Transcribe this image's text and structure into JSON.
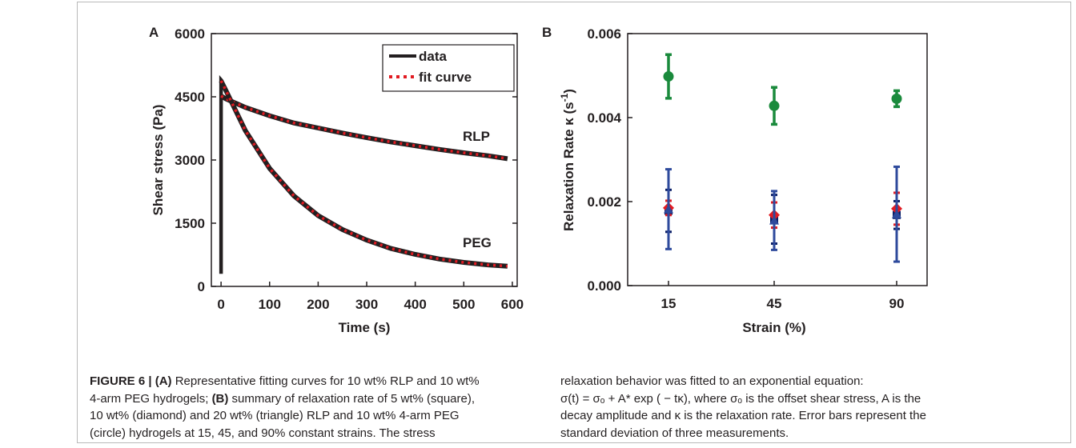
{
  "panel_a": {
    "letter": "A",
    "xlabel": "Time (s)",
    "ylabel": "Shear stress (Pa)",
    "xticks": [
      "0",
      "100",
      "200",
      "300",
      "400",
      "500",
      "600"
    ],
    "yticks": [
      "0",
      "1500",
      "3000",
      "4500",
      "6000"
    ],
    "legend": [
      "data",
      "fit curve"
    ],
    "annotations": [
      "RLP",
      "PEG"
    ]
  },
  "panel_b": {
    "letter": "B",
    "xlabel": "Strain (%)",
    "ylabel_main": "Relaxation Rate κ (s",
    "ylabel_sup": "-1",
    "ylabel_end": ")",
    "xticks": [
      "15",
      "45",
      "90"
    ],
    "yticks": [
      "0.000",
      "0.002",
      "0.004",
      "0.006"
    ]
  },
  "chart_data": [
    {
      "type": "line",
      "title": "",
      "xlabel": "Time (s)",
      "ylabel": "Shear stress (Pa)",
      "xlim": [
        -20,
        610
      ],
      "ylim": [
        0,
        6000
      ],
      "grid": false,
      "legend_position": "top-right",
      "series": [
        {
          "name": "data",
          "style": "solid",
          "color": "#231f20",
          "x": [
            0,
            10,
            50,
            100,
            150,
            200,
            250,
            300,
            350,
            400,
            450,
            500,
            550,
            590
          ],
          "y": [
            4520,
            4450,
            4250,
            4050,
            3880,
            3760,
            3640,
            3530,
            3430,
            3340,
            3250,
            3170,
            3100,
            3030
          ]
        },
        {
          "name": "fit curve",
          "style": "dotted",
          "color": "#e11b22",
          "x": [
            0,
            10,
            50,
            100,
            150,
            200,
            250,
            300,
            350,
            400,
            450,
            500,
            550,
            590
          ],
          "y": [
            4520,
            4450,
            4250,
            4050,
            3880,
            3760,
            3640,
            3530,
            3430,
            3340,
            3250,
            3170,
            3100,
            3030
          ]
        },
        {
          "name": "data",
          "style": "solid",
          "color": "#231f20",
          "x": [
            0,
            10,
            50,
            100,
            150,
            200,
            250,
            300,
            350,
            400,
            450,
            500,
            550,
            590
          ],
          "y": [
            4880,
            4650,
            3700,
            2800,
            2150,
            1680,
            1350,
            1100,
            900,
            760,
            650,
            570,
            510,
            480
          ]
        },
        {
          "name": "fit curve",
          "style": "dotted",
          "color": "#e11b22",
          "x": [
            0,
            10,
            50,
            100,
            150,
            200,
            250,
            300,
            350,
            400,
            450,
            500,
            550,
            590
          ],
          "y": [
            4880,
            4650,
            3700,
            2800,
            2150,
            1680,
            1350,
            1100,
            900,
            760,
            650,
            570,
            510,
            480
          ]
        }
      ],
      "annotations": [
        "RLP",
        "PEG"
      ]
    },
    {
      "type": "scatter",
      "title": "",
      "xlabel": "Strain (%)",
      "ylabel": "Relaxation Rate κ (s-1)",
      "categories": [
        "15",
        "45",
        "90"
      ],
      "ylim": [
        0,
        0.006
      ],
      "grid": false,
      "series": [
        {
          "marker": "circle",
          "color": "#1a8a3c",
          "values": [
            0.00498,
            0.00428,
            0.00445
          ],
          "errors": [
            0.00052,
            0.00044,
            0.00019
          ]
        },
        {
          "marker": "square",
          "color": "#0b1f66",
          "values": [
            0.00178,
            0.00158,
            0.00168
          ],
          "errors": [
            0.0005,
            0.00058,
            0.00033
          ]
        },
        {
          "marker": "diamond",
          "color": "#e11b22",
          "values": [
            0.00185,
            0.00168,
            0.00183
          ],
          "errors": [
            0.00017,
            0.0003,
            0.00038
          ]
        },
        {
          "marker": "triangle",
          "color": "#2e4a9c",
          "values": [
            0.00182,
            0.00155,
            0.0017
          ],
          "errors": [
            0.00095,
            0.0007,
            0.00113
          ]
        }
      ]
    }
  ],
  "caption": {
    "left_lines": [
      {
        "bold": "FIGURE 6 | (A)",
        "text": " Representative fitting curves for 10 wt% RLP and 10 wt%"
      },
      {
        "bold": "",
        "text": "4-arm PEG hydrogels; "
      },
      {
        "bold": "",
        "text": "10 wt% (diamond) and 20 wt% (triangle) RLP and 10 wt% 4-arm PEG"
      },
      {
        "bold": "",
        "text": "(circle) hydrogels at 15, 45, and 90% constant strains. The stress"
      }
    ],
    "left_line2_bold": "(B)",
    "left_line2_rest": " summary of relaxation rate of 5 wt% (square),",
    "right_lines": [
      "relaxation behavior was fitted to an exponential equation:",
      "σ(t) = σₒ + A* exp ( − tκ), where σₒ is the offset shear stress, A is the",
      "decay amplitude and κ is the relaxation rate. Error bars represent the",
      "standard deviation of three measurements."
    ]
  }
}
